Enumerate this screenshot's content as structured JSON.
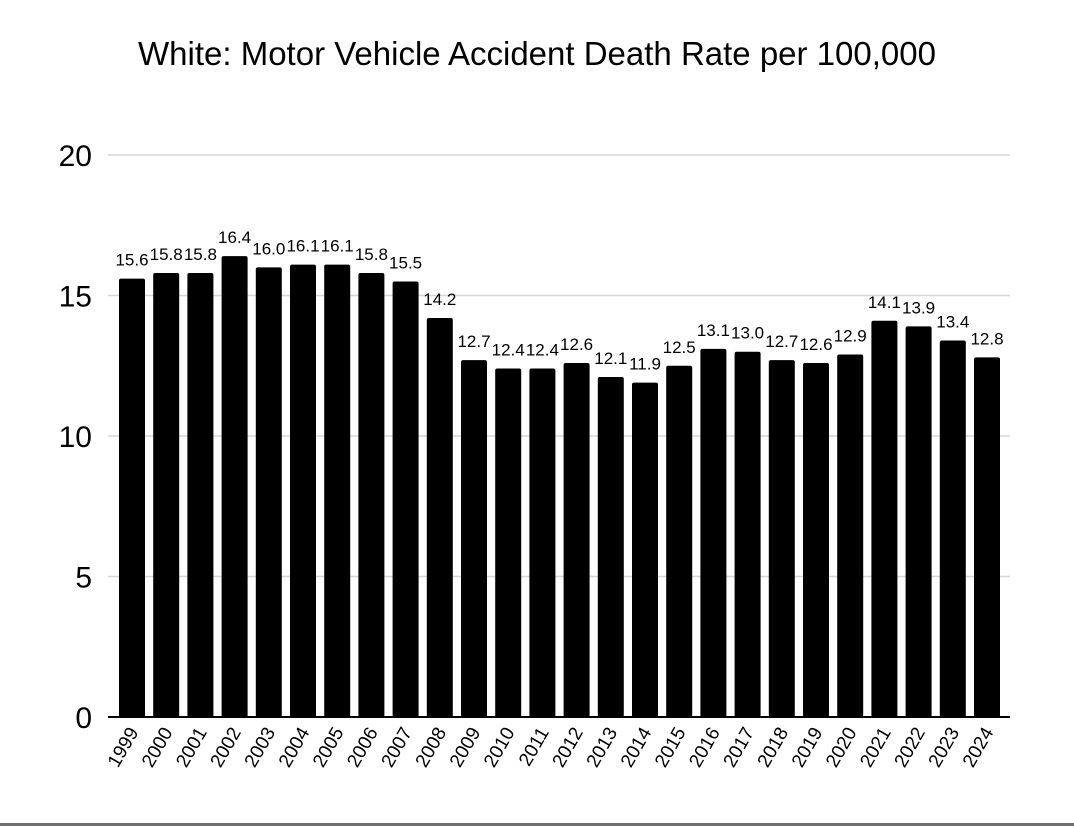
{
  "chart_data": {
    "type": "bar",
    "title": "White: Motor Vehicle Accident Death Rate per 100,000",
    "xlabel": "",
    "ylabel": "",
    "ylim": [
      0,
      20
    ],
    "yticks": [
      "0",
      "5",
      "10",
      "15",
      "20"
    ],
    "grid": true,
    "legend": "none",
    "bar_color": "#000000",
    "categories": [
      "1999",
      "2000",
      "2001",
      "2002",
      "2003",
      "2004",
      "2005",
      "2006",
      "2007",
      "2008",
      "2009",
      "2010",
      "2011",
      "2012",
      "2013",
      "2014",
      "2015",
      "2016",
      "2017",
      "2018",
      "2019",
      "2020",
      "2021",
      "2022",
      "2023",
      "2024"
    ],
    "values": [
      15.6,
      15.8,
      15.8,
      16.4,
      16.0,
      16.1,
      16.1,
      15.8,
      15.5,
      14.2,
      12.7,
      12.4,
      12.4,
      12.6,
      12.1,
      11.9,
      12.5,
      13.1,
      13.0,
      12.7,
      12.6,
      12.9,
      14.1,
      13.9,
      13.4,
      12.8
    ],
    "data_labels": [
      "15.6",
      "15.8",
      "15.8",
      "16.4",
      "16.0",
      "16.1",
      "16.1",
      "15.8",
      "15.5",
      "14.2",
      "12.7",
      "12.4",
      "12.4",
      "12.6",
      "12.1",
      "11.9",
      "12.5",
      "13.1",
      "13.0",
      "12.7",
      "12.6",
      "12.9",
      "14.1",
      "13.9",
      "13.4",
      "12.8"
    ]
  }
}
